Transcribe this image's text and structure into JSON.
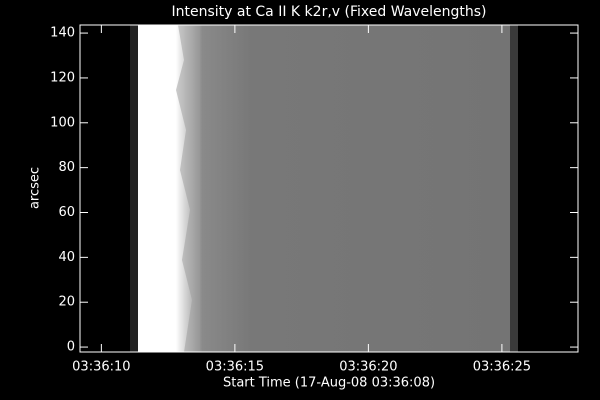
{
  "chart_data": {
    "type": "image",
    "title": "Intensity at Ca II K k2r,v (Fixed Wavelengths)",
    "xlabel": "Start Time (17-Aug-08 03:36:08)",
    "ylabel": "arcsec",
    "xlim": [
      9.2,
      27.85
    ],
    "xticks": [
      {
        "value": 10,
        "label": "03:36:10"
      },
      {
        "value": 15,
        "label": "03:36:15"
      },
      {
        "value": 20,
        "label": "03:36:20"
      },
      {
        "value": 25,
        "label": "03:36:25"
      }
    ],
    "ylim": [
      -2.2,
      143.6
    ],
    "yticks": [
      0,
      20,
      40,
      60,
      80,
      100,
      120,
      140
    ]
  }
}
